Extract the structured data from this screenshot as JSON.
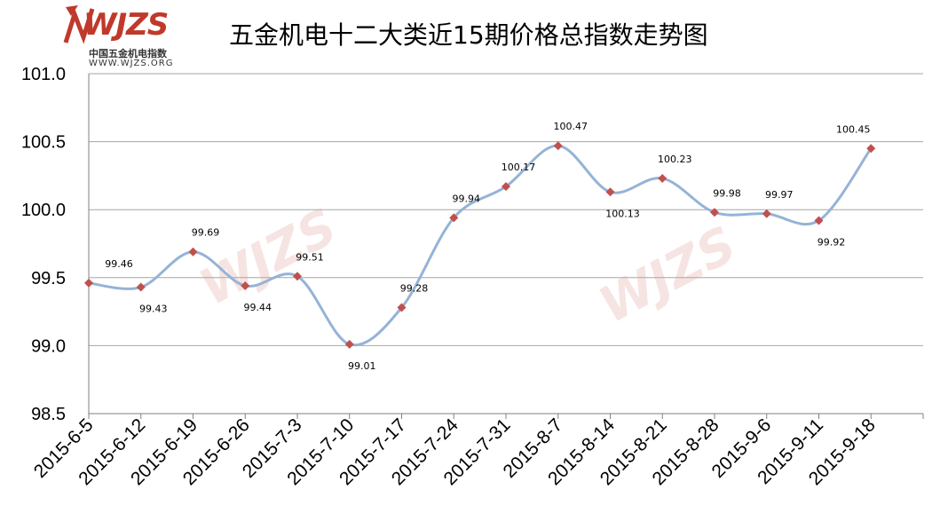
{
  "header": {
    "title": "五金机电十二大类近15期价格总指数走势图",
    "logo_text": "WJZS",
    "logo_sub_cn": "中国五金机电指数",
    "logo_sub_url": "WWW.WJZS.ORG"
  },
  "colors": {
    "line": "#95b3d7",
    "marker": "#c0504d",
    "grid": "#a6a6a6",
    "brand": "#c0392b"
  },
  "chart_data": {
    "type": "line",
    "title": "五金机电十二大类近15期价格总指数走势图",
    "xlabel": "",
    "ylabel": "",
    "ylim": [
      98.5,
      101.0
    ],
    "yticks": [
      "98.5",
      "99.0",
      "99.5",
      "100.0",
      "100.5",
      "101.0"
    ],
    "grid": "horizontal",
    "legend": "none",
    "categories": [
      "2015-6-5",
      "2015-6-12",
      "2015-6-19",
      "2015-6-26",
      "2015-7-3",
      "2015-7-10",
      "2015-7-17",
      "2015-7-24",
      "2015-7-31",
      "2015-8-7",
      "2015-8-14",
      "2015-8-21",
      "2015-8-28",
      "2015-9-6",
      "2015-9-11",
      "2015-9-18"
    ],
    "series": [
      {
        "values": [
          99.46,
          99.43,
          99.69,
          99.44,
          99.51,
          99.01,
          99.28,
          99.94,
          100.17,
          100.47,
          100.13,
          100.23,
          99.98,
          99.97,
          99.92,
          100.45
        ],
        "labels": [
          "99.46",
          "99.43",
          "99.69",
          "99.44",
          "99.51",
          "99.01",
          "99.28",
          "99.94",
          "100.17",
          "100.47",
          "100.13",
          "100.23",
          "99.98",
          "99.97",
          "99.92",
          "100.45"
        ]
      }
    ]
  }
}
